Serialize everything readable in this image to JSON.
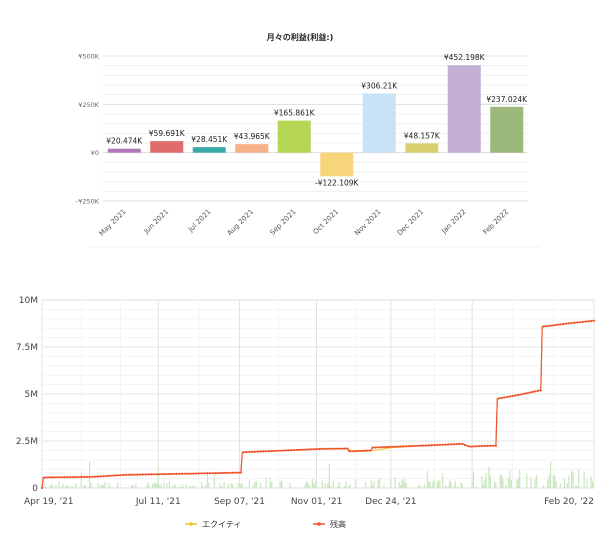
{
  "chart_data": [
    {
      "type": "bar",
      "title": "月々の利益(利益:)",
      "categories": [
        "May 2021",
        "Jun 2021",
        "Jul 2021",
        "Aug 2021",
        "Sep 2021",
        "Oct 2021",
        "Nov 2021",
        "Dec 2021",
        "Jan 2022",
        "Feb 2022"
      ],
      "values": [
        20474,
        59691,
        28451,
        43965,
        165861,
        -122109,
        306210,
        48157,
        452198,
        237024
      ],
      "data_labels": [
        "¥20.474K",
        "¥59.691K",
        "¥28.451K",
        "¥43.965K",
        "¥165.861K",
        "-¥122.109K",
        "¥306.21K",
        "¥48.157K",
        "¥452.198K",
        "¥237.024K"
      ],
      "colors": [
        "#b07ab8",
        "#e06c6c",
        "#3aaba8",
        "#f7b088",
        "#b5d655",
        "#f7d57b",
        "#c9e2f5",
        "#d9d070",
        "#c3aed6",
        "#9cb87a"
      ],
      "ylim": [
        -250000,
        500000
      ],
      "yticks": [
        -250000,
        0,
        250000,
        500000
      ],
      "ytick_labels": [
        "-¥250K",
        "¥0",
        "¥250K",
        "¥500K"
      ],
      "xlabel": "",
      "ylabel": "",
      "grid": true
    },
    {
      "type": "line",
      "x_range": [
        "2021-04-19",
        "2022-02-26"
      ],
      "x_tick_labels": [
        "Apr 19, '21",
        "Jul 11, '21",
        "Sep 07, '21",
        "Nov 01, '21",
        "Dec 24, '21",
        "Feb 20, '22"
      ],
      "ylim": [
        0,
        10000000
      ],
      "yticks": [
        0,
        2500000,
        5000000,
        7500000,
        10000000
      ],
      "ytick_labels": [
        "0",
        "2.5M",
        "5M",
        "7.5M",
        "10M"
      ],
      "series": [
        {
          "name": "エクイティ",
          "color": "#f2c32e",
          "anchors": [
            [
              0,
              0
            ],
            [
              1,
              560000
            ],
            [
              35,
              590000
            ],
            [
              60,
              700000
            ],
            [
              130,
              800000
            ],
            [
              142,
              820000
            ],
            [
              143,
              1900000
            ],
            [
              200,
              2080000
            ],
            [
              218,
              2100000
            ],
            [
              222,
              1930000
            ],
            [
              235,
              1970000
            ],
            [
              250,
              2150000
            ],
            [
              280,
              2280000
            ],
            [
              300,
              2350000
            ],
            [
              305,
              2200000
            ],
            [
              313,
              2230000
            ],
            [
              324,
              2250000
            ],
            [
              325,
              4750000
            ],
            [
              340,
              4950000
            ],
            [
              356,
              5200000
            ],
            [
              357,
              8580000
            ],
            [
              375,
              8750000
            ],
            [
              394,
              8900000
            ]
          ]
        },
        {
          "name": "残高",
          "color": "#f0522d",
          "anchors": [
            [
              0,
              0
            ],
            [
              1,
              560000
            ],
            [
              35,
              590000
            ],
            [
              60,
              700000
            ],
            [
              130,
              800000
            ],
            [
              142,
              820000
            ],
            [
              143,
              1900000
            ],
            [
              200,
              2080000
            ],
            [
              218,
              2100000
            ],
            [
              219,
              1950000
            ],
            [
              235,
              2000000
            ],
            [
              236,
              2150000
            ],
            [
              280,
              2280000
            ],
            [
              300,
              2350000
            ],
            [
              305,
              2200000
            ],
            [
              313,
              2230000
            ],
            [
              324,
              2250000
            ],
            [
              325,
              4750000
            ],
            [
              340,
              4950000
            ],
            [
              356,
              5200000
            ],
            [
              357,
              8580000
            ],
            [
              375,
              8750000
            ],
            [
              394,
              8900000
            ]
          ]
        }
      ],
      "bars": {
        "name": "volume",
        "color": "#c9e6c0",
        "max": 1500000,
        "days": 394
      }
    }
  ]
}
